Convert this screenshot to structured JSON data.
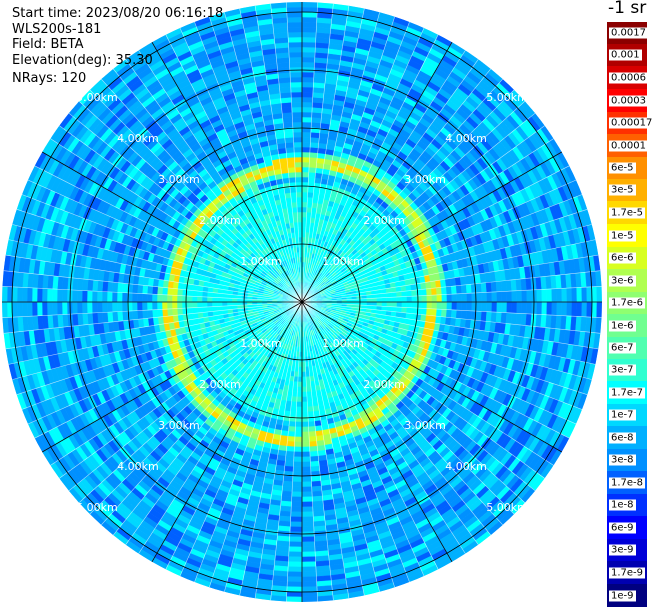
{
  "info": {
    "start_time": "Start time: 2023/08/20 06:16:18",
    "instrument": "WLS200s-181",
    "field": "Field: BETA",
    "elevation": "Elevation(deg): 35.30",
    "nrays": "NRays: 120"
  },
  "colorbar": {
    "unit": "-1 sr",
    "labels": [
      "0.0017",
      "0.001",
      "0.0006",
      "0.0003",
      "0.00017",
      "0.0001",
      "6e-5",
      "3e-5",
      "1.7e-5",
      "1e-5",
      "6e-6",
      "3e-6",
      "1.7e-6",
      "1e-6",
      "6e-7",
      "3e-7",
      "1.7e-7",
      "1e-7",
      "6e-8",
      "3e-8",
      "1.7e-8",
      "1e-8",
      "6e-9",
      "3e-9",
      "1.7e-9",
      "1e-9"
    ],
    "colors": [
      "#8b0000",
      "#b00000",
      "#d80000",
      "#ff0000",
      "#ff3000",
      "#ff6000",
      "#ff9000",
      "#ffb000",
      "#ffd800",
      "#ffff00",
      "#d8ff20",
      "#b0ff50",
      "#8fff70",
      "#70ff90",
      "#50ffb0",
      "#30ffd0",
      "#00ffff",
      "#00d8ff",
      "#00b0ff",
      "#0090ff",
      "#0060ff",
      "#0030ff",
      "#0000ff",
      "#0000d8",
      "#0000b0",
      "#000080"
    ]
  },
  "range_labels": [
    "1.00km",
    "2.00km",
    "3.00km",
    "4.00km",
    "5.00km"
  ],
  "chart_data": {
    "type": "heatmap",
    "field": "BETA",
    "elevation_deg": 35.3,
    "nrays": 120,
    "range_rings_km": [
      1,
      2,
      3,
      4,
      5
    ],
    "color_scale": [
      "1e-9",
      "0.0017"
    ],
    "data_description": "polar PPI of backscatter coefficient; strongest ring (~1e-5 to 3e-5) at about 2.2 km slant range"
  }
}
